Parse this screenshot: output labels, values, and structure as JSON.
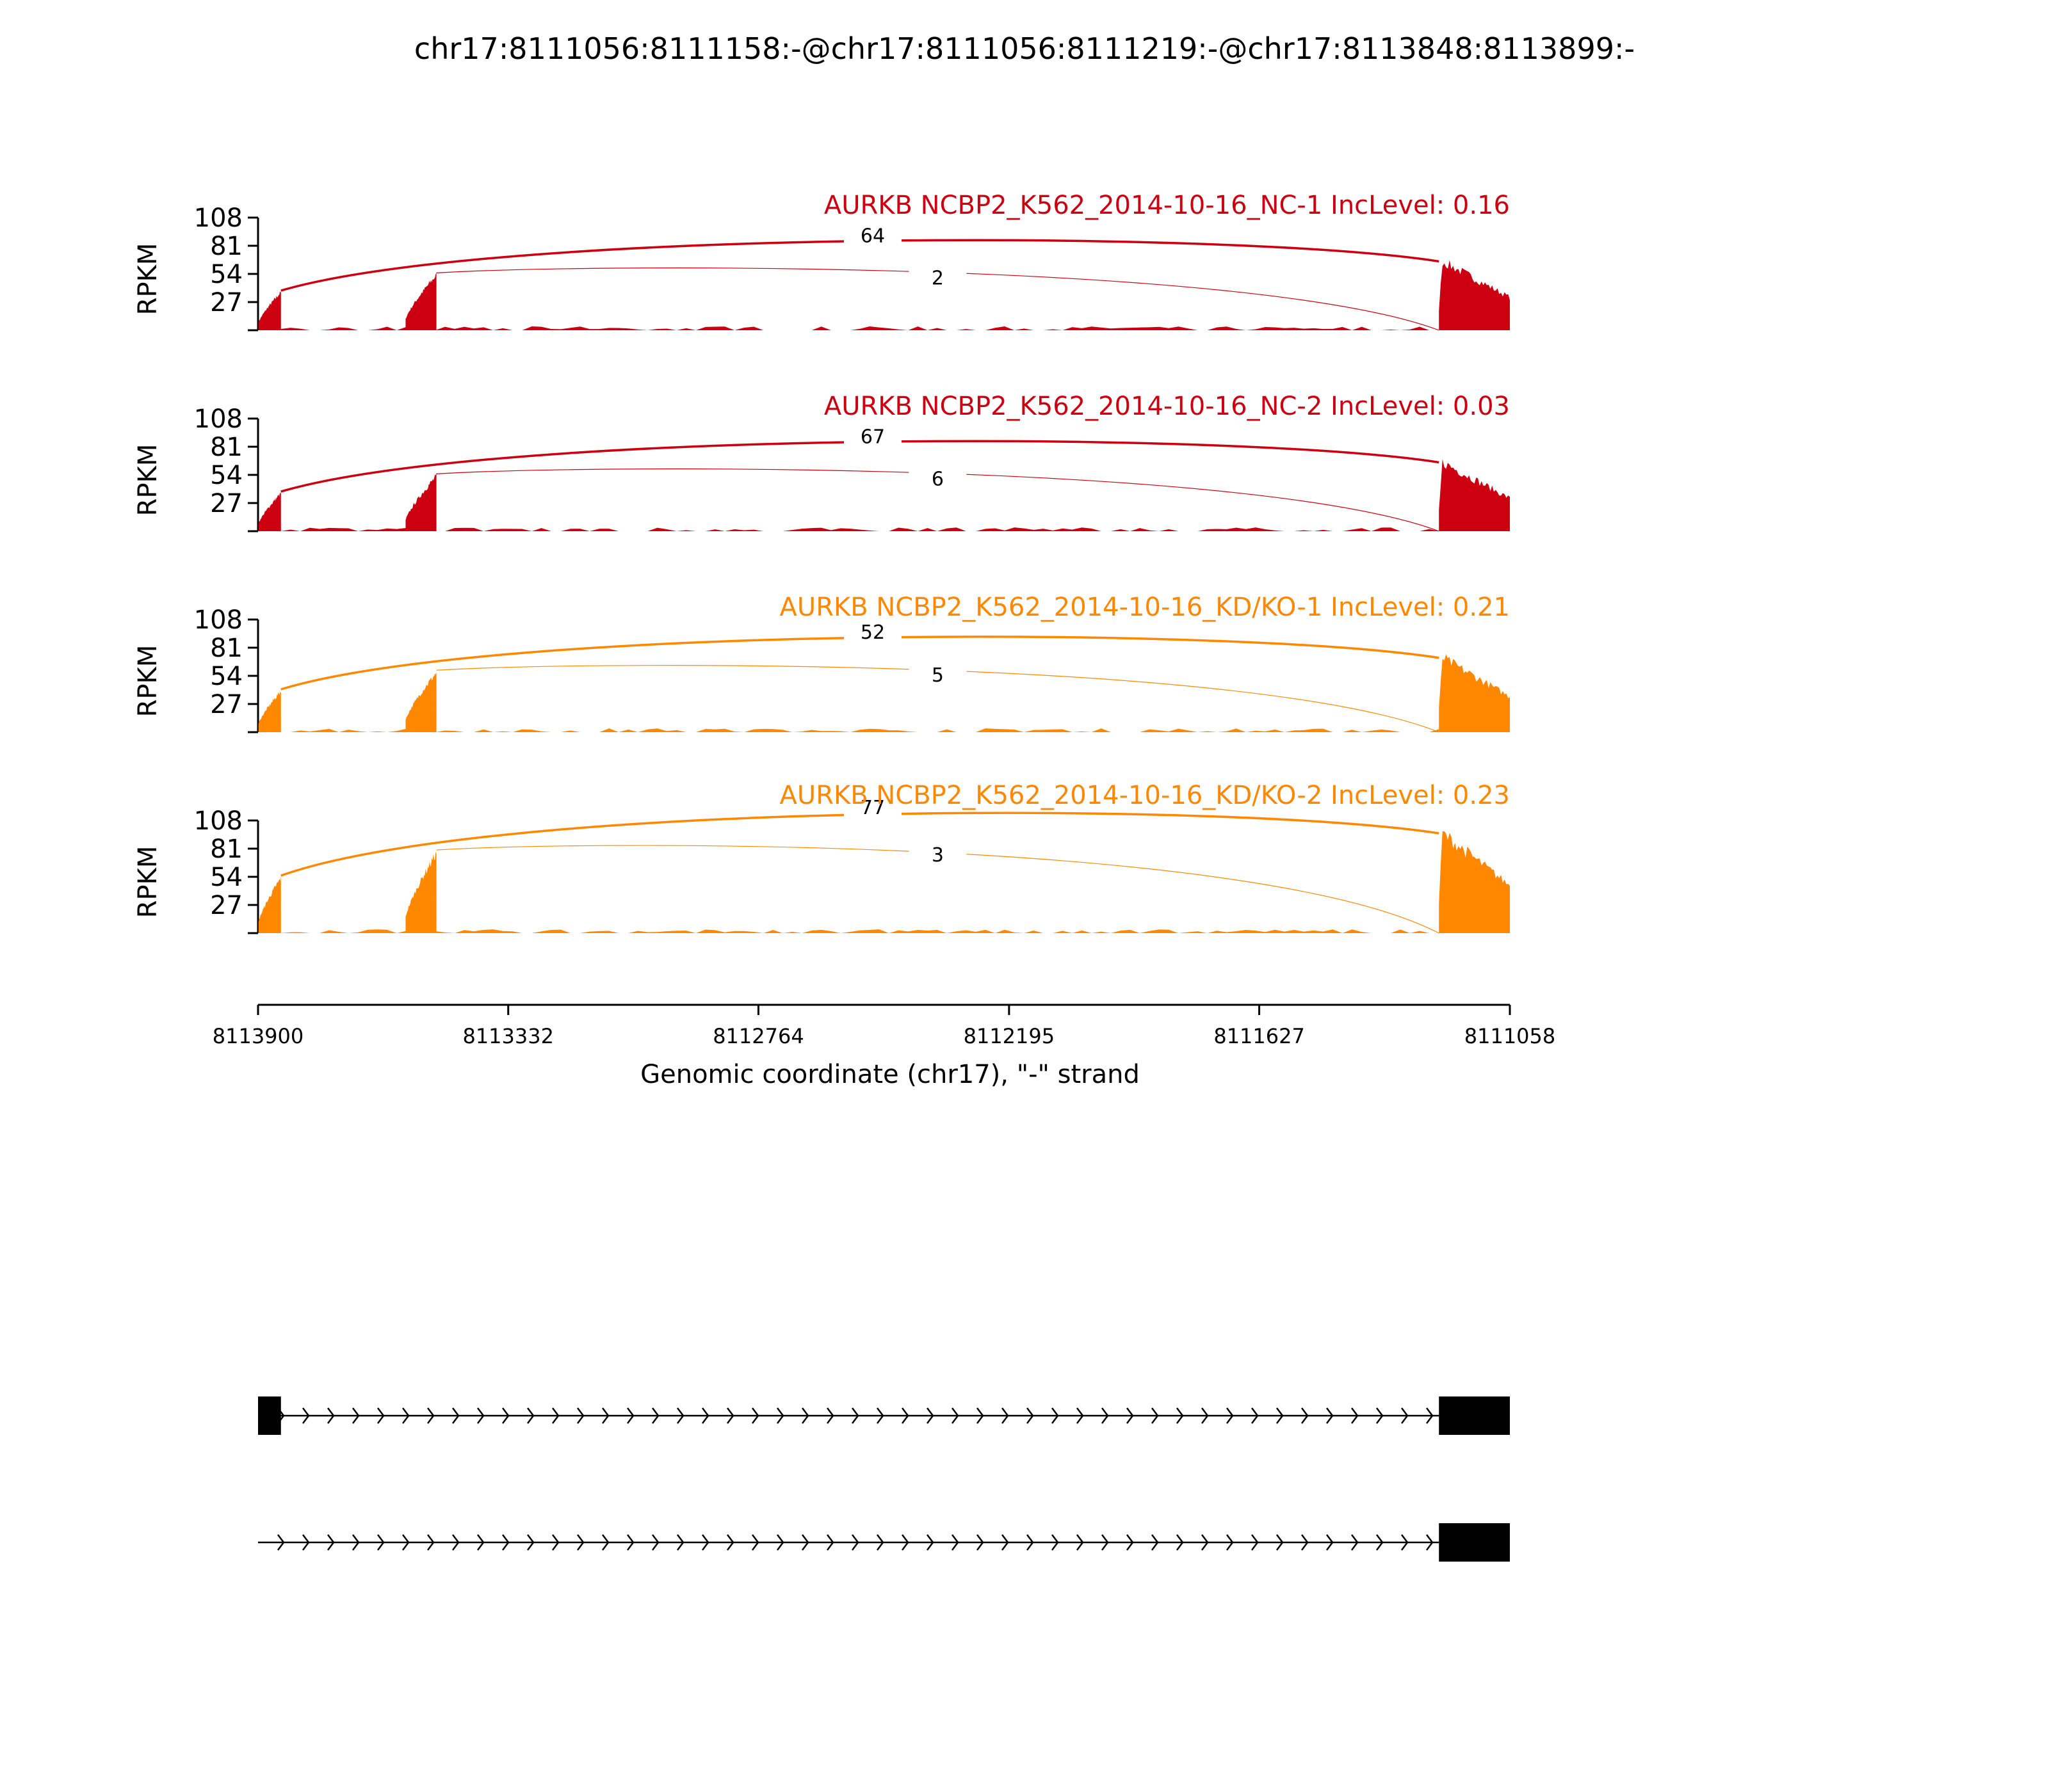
{
  "chart_data": {
    "type": "area",
    "title": "chr17:8111056:8111158:-@chr17:8111056:8111219:-@chr17:8113848:8113899:-",
    "xlabel": "Genomic coordinate (chr17), \"-\" strand",
    "ylabel": "RPKM",
    "xlim": [
      8113900,
      8111058
    ],
    "x_ticks": [
      "8113900",
      "8113332",
      "8112764",
      "8112195",
      "8111627",
      "8111058"
    ],
    "ylim": [
      0,
      108
    ],
    "y_ticks": [
      "27",
      "54",
      "81",
      "108"
    ],
    "colors": {
      "NC": "#cc0011",
      "KD": "#ff8800"
    },
    "exons": [
      {
        "start": 8113899,
        "end": 8113848,
        "peak": 38
      },
      {
        "start": 8113565,
        "end": 8113495,
        "peak": 55
      },
      {
        "start": 8111219,
        "end": 8111058,
        "peak": 66
      }
    ],
    "series": [
      {
        "name": "AURKB NCBP2_K562_2014-10-16_NC-1 IncLevel: 0.16",
        "group": "NC",
        "scale": 1.0,
        "junctions": [
          {
            "from": 8113848,
            "to": 8111219,
            "count": "64"
          },
          {
            "from": 8113495,
            "to": 8111219,
            "count": "2"
          }
        ]
      },
      {
        "name": "AURKB NCBP2_K562_2014-10-16_NC-2 IncLevel: 0.03",
        "group": "NC",
        "scale": 1.0,
        "junctions": [
          {
            "from": 8113848,
            "to": 8111219,
            "count": "67"
          },
          {
            "from": 8113495,
            "to": 8111219,
            "count": "6"
          }
        ]
      },
      {
        "name": "AURKB NCBP2_K562_2014-10-16_KD/KO-1 IncLevel: 0.21",
        "group": "KD",
        "scale": 1.08,
        "junctions": [
          {
            "from": 8113848,
            "to": 8111219,
            "count": "52"
          },
          {
            "from": 8113495,
            "to": 8111219,
            "count": "5"
          }
        ]
      },
      {
        "name": "AURKB NCBP2_K562_2014-10-16_KD/KO-2 IncLevel: 0.23",
        "group": "KD",
        "scale": 1.45,
        "junctions": [
          {
            "from": 8113848,
            "to": 8111219,
            "count": "77"
          },
          {
            "from": 8113495,
            "to": 8111219,
            "count": "3"
          }
        ]
      }
    ],
    "isoforms": [
      {
        "exons": [
          {
            "start": 8113900,
            "end": 8113848
          },
          {
            "start": 8111219,
            "end": 8111058
          }
        ]
      },
      {
        "exons": [
          {
            "start": 8111219,
            "end": 8111058
          }
        ]
      }
    ]
  }
}
